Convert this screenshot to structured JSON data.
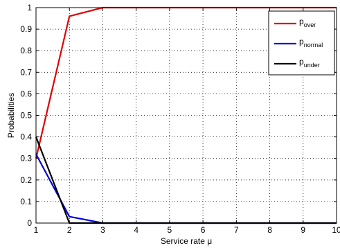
{
  "chart_data": {
    "type": "line",
    "title": "",
    "xlabel": "Service rate μ",
    "ylabel": "Probabilities",
    "xlim": [
      1,
      10
    ],
    "ylim": [
      0,
      1
    ],
    "xticks": [
      "1",
      "2",
      "3",
      "4",
      "5",
      "6",
      "7",
      "8",
      "9",
      "10"
    ],
    "yticks": [
      "0",
      "0.1",
      "0.2",
      "0.3",
      "0.4",
      "0.5",
      "0.6",
      "0.7",
      "0.8",
      "0.9",
      "1"
    ],
    "grid": true,
    "legend_position": "top-right",
    "x": [
      1,
      2,
      3,
      4,
      5,
      6,
      7,
      8,
      9,
      10
    ],
    "series": [
      {
        "name": "p",
        "sub": "over",
        "color": "#e00000",
        "values": [
          0.3,
          0.96,
          1.0,
          1.0,
          1.0,
          1.0,
          1.0,
          1.0,
          1.0,
          1.0
        ]
      },
      {
        "name": "p",
        "sub": "normal",
        "color": "#0000e0",
        "values": [
          0.32,
          0.03,
          0.0,
          0.0,
          0.0,
          0.0,
          0.0,
          0.0,
          0.0,
          0.0
        ]
      },
      {
        "name": "p",
        "sub": "under",
        "color": "#000000",
        "values": [
          0.4,
          0.0,
          0.0,
          0.0,
          0.0,
          0.0,
          0.0,
          0.0,
          0.0,
          0.0
        ]
      }
    ]
  }
}
